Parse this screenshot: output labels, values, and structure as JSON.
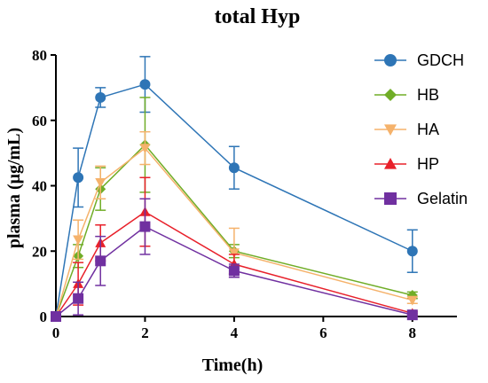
{
  "chart_data": {
    "type": "line",
    "title": "total Hyp",
    "xlabel": "Time(h)",
    "ylabel": "plasma (μg/mL)",
    "x": [
      0,
      0.5,
      1,
      2,
      4,
      8
    ],
    "xticks": [
      0,
      2,
      4,
      6,
      8
    ],
    "yticks": [
      0,
      20,
      40,
      60,
      80
    ],
    "xlim": [
      0,
      9.0
    ],
    "ylim": [
      0,
      80
    ],
    "legend_position": "right",
    "grid": false,
    "series": [
      {
        "name": "GDCH",
        "color": "#2e75b6",
        "marker": "circle",
        "values": [
          0,
          42.5,
          67.0,
          71.0,
          45.5,
          20.0
        ],
        "errors": [
          0,
          9.0,
          3.0,
          8.5,
          6.5,
          6.5
        ]
      },
      {
        "name": "HB",
        "color": "#70ad27",
        "marker": "diamond",
        "values": [
          0,
          18.5,
          39.0,
          52.5,
          20.0,
          6.5
        ],
        "errors": [
          0,
          3.5,
          6.5,
          14.5,
          2.0,
          1.0
        ]
      },
      {
        "name": "HA",
        "color": "#f5b26b",
        "marker": "triangle-down",
        "values": [
          0,
          23.5,
          41.0,
          51.5,
          19.5,
          5.0
        ],
        "errors": [
          0,
          6.0,
          5.0,
          5.0,
          7.5,
          1.0
        ]
      },
      {
        "name": "HP",
        "color": "#e8202a",
        "marker": "triangle-up",
        "values": [
          0,
          10.0,
          22.5,
          32.0,
          16.0,
          1.0
        ],
        "errors": [
          0,
          6.5,
          5.5,
          10.5,
          3.0,
          0.5
        ]
      },
      {
        "name": "Gelatin",
        "color": "#7030a0",
        "marker": "square",
        "values": [
          0,
          5.5,
          17.0,
          27.5,
          14.0,
          0.5
        ],
        "errors": [
          0,
          5.0,
          7.5,
          8.5,
          2.0,
          0.5
        ]
      }
    ]
  }
}
